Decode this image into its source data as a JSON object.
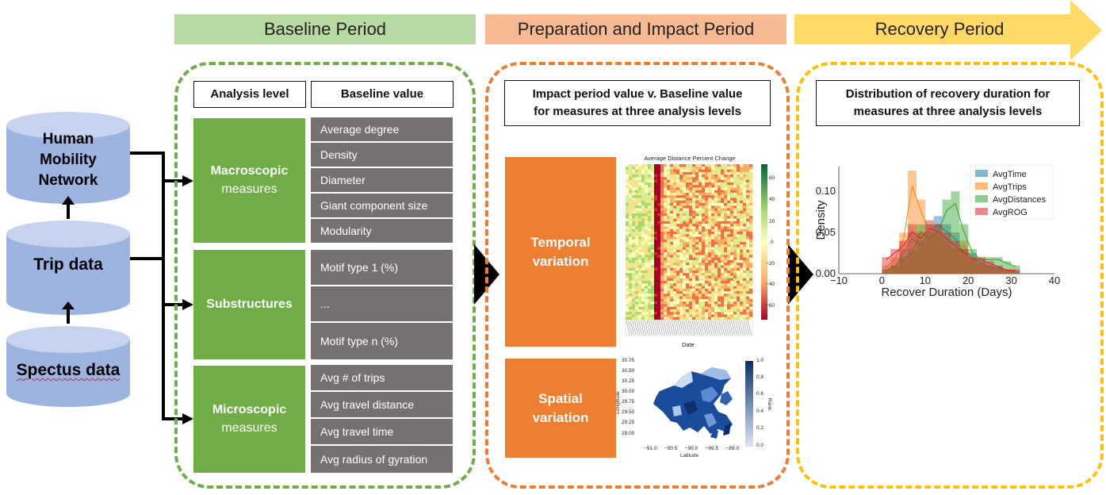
{
  "periods": {
    "baseline": "Baseline Period",
    "preparation": "Preparation and Impact Period",
    "recovery": "Recovery Period"
  },
  "colors": {
    "green": "#70ad47",
    "green_light": "#b8d9a3",
    "orange": "#ed7d31",
    "orange_light": "#f7b992",
    "yellow": "#ffd966",
    "grey": "#767171",
    "blue_cylinder": "#9db3e0"
  },
  "data_sources": {
    "network": "Human Mobility Network",
    "trip": "Trip data",
    "spectus": "Spectus data"
  },
  "baseline": {
    "col_level": "Analysis level",
    "col_value": "Baseline value",
    "macro": {
      "title": "Macroscopic",
      "subtitle": "measures",
      "items": [
        "Average degree",
        "Density",
        "Diameter",
        "Giant component size",
        "Modularity"
      ]
    },
    "sub": {
      "title": "Substructures",
      "items": [
        "Motif type 1 (%)",
        "...",
        "Motif type n (%)"
      ]
    },
    "micro": {
      "title": "Microscopic",
      "subtitle": "measures",
      "items": [
        "Avg # of trips",
        "Avg travel distance",
        "Avg travel time",
        "Avg radius of gyration"
      ]
    }
  },
  "impact": {
    "title_line1": "Impact period value v. Baseline value",
    "title_line2": "for measures at three analysis levels",
    "temporal": [
      "Temporal",
      "variation"
    ],
    "spatial": [
      "Spatial",
      "variation"
    ],
    "heatmap": {
      "title": "Average Distance Percent Change",
      "xlabel": "Date",
      "colorbar_ticks": [
        "60",
        "40",
        "20",
        "0",
        "−20",
        "−40",
        "−60"
      ]
    },
    "map": {
      "xlabel": "Latitude",
      "ylabel": "Longitude",
      "xticks": [
        "−91.0",
        "−90.5",
        "−90.0",
        "−89.5",
        "−89.0"
      ],
      "yticks": [
        "30.75",
        "30.50",
        "30.25",
        "30.00",
        "29.75",
        "29.50",
        "29.25",
        "29.00"
      ],
      "colorbar_label": "Rank",
      "colorbar_ticks": [
        "1.0",
        "0.8",
        "0.6",
        "0.4",
        "0.2",
        "0.0"
      ]
    }
  },
  "recovery": {
    "title_line1": "Distribution of recovery duration for",
    "title_line2": "measures at three analysis levels"
  },
  "chart_data": {
    "type": "bar",
    "xlabel": "Recover Duration (Days)",
    "ylabel": "Density",
    "xlim": [
      -10,
      40
    ],
    "ylim": [
      0,
      0.13
    ],
    "xticks": [
      "−10",
      "0",
      "10",
      "20",
      "30",
      "40"
    ],
    "yticks": [
      "0.00",
      "0.05",
      "0.10"
    ],
    "legend_position": "top-right",
    "bin_edges": [
      0,
      2,
      4,
      6,
      8,
      10,
      12,
      14,
      16,
      18,
      20,
      22,
      24,
      26,
      28,
      30,
      32
    ],
    "series": [
      {
        "name": "AvgTime",
        "color": "#1f77b4",
        "values": [
          0.005,
          0.01,
          0.03,
          0.05,
          0.04,
          0.06,
          0.07,
          0.06,
          0.05,
          0.03,
          0.025,
          0.015,
          0.01,
          0.008,
          0.005,
          0.003
        ]
      },
      {
        "name": "AvgTrips",
        "color": "#ff7f0e",
        "values": [
          0.01,
          0.02,
          0.05,
          0.125,
          0.09,
          0.06,
          0.05,
          0.04,
          0.03,
          0.04,
          0.02,
          0.01,
          0.01,
          0.005,
          0.005,
          0.0
        ]
      },
      {
        "name": "AvgDistances",
        "color": "#2ca02c",
        "values": [
          0.005,
          0.01,
          0.02,
          0.03,
          0.06,
          0.05,
          0.06,
          0.09,
          0.1,
          0.06,
          0.03,
          0.02,
          0.02,
          0.02,
          0.015,
          0.01
        ]
      },
      {
        "name": "AvgROG",
        "color": "#d62728",
        "values": [
          0.02,
          0.03,
          0.04,
          0.06,
          0.05,
          0.065,
          0.06,
          0.05,
          0.04,
          0.03,
          0.02,
          0.02,
          0.015,
          0.01,
          0.005,
          0.005
        ]
      }
    ]
  }
}
